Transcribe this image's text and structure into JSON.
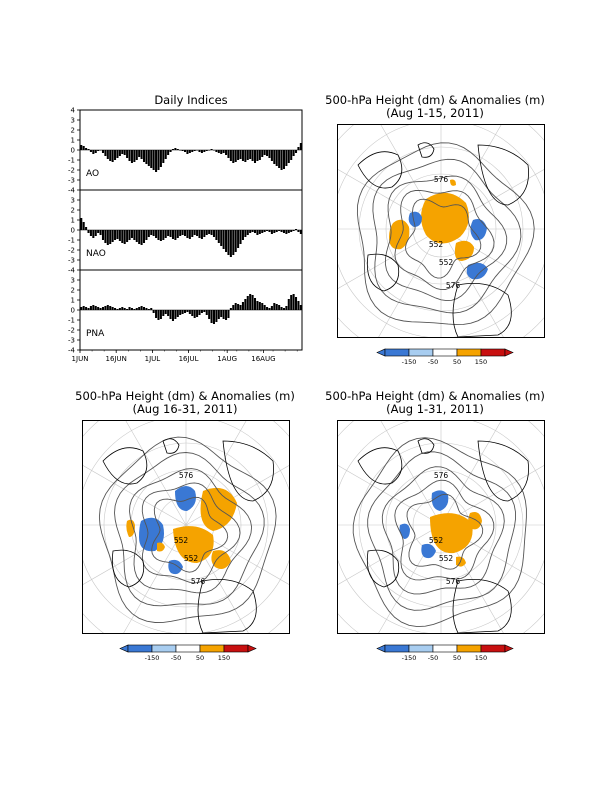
{
  "indices": {
    "title": "Daily Indices",
    "panels": [
      {
        "name": "AO",
        "ylim": [
          -4,
          4
        ],
        "ticks": [
          "4",
          "3",
          "2",
          "1",
          "0",
          "-1",
          "-2",
          "-3",
          "-4"
        ]
      },
      {
        "name": "NAO",
        "ylim": [
          -4,
          4
        ],
        "ticks": [
          "4",
          "3",
          "2",
          "1",
          "0",
          "-1",
          "-2",
          "-3",
          "-4"
        ]
      },
      {
        "name": "PNA",
        "ylim": [
          -4,
          4
        ],
        "ticks": [
          "4",
          "3",
          "2",
          "1",
          "0",
          "-1",
          "-2",
          "-3",
          "-4"
        ]
      }
    ],
    "xticks": [
      "1JUN",
      "16JUN",
      "1JUL",
      "16JUL",
      "1AUG",
      "16AUG"
    ]
  },
  "maps": [
    {
      "title_line1": "500-hPa Height (dm) & Anomalies (m)",
      "title_line2": "(Aug 1-15, 2011)",
      "contour_labels": [
        "576",
        "552",
        "552",
        "576"
      ]
    },
    {
      "title_line1": "500-hPa Height (dm) & Anomalies (m)",
      "title_line2": "(Aug 16-31, 2011)",
      "contour_labels": [
        "576",
        "552",
        "552",
        "576"
      ]
    },
    {
      "title_line1": "500-hPa Height (dm) & Anomalies (m)",
      "title_line2": "(Aug 1-31, 2011)",
      "contour_labels": [
        "576",
        "552",
        "552",
        "576"
      ]
    }
  ],
  "colorbar": {
    "labels": [
      "-150",
      "-50",
      "50",
      "150"
    ],
    "colors": [
      "#3a78d4",
      "#a8cdf0",
      "#ffffff",
      "#f5a300",
      "#c81010"
    ]
  },
  "chart_data": [
    {
      "type": "bar",
      "title": "Daily Indices",
      "x": "daily, 1 Jun - 31 Aug 2011",
      "xticks": [
        "1JUN",
        "16JUN",
        "1JUL",
        "16JUL",
        "1AUG",
        "16AUG"
      ],
      "ylim": [
        -4,
        4
      ],
      "series": [
        {
          "name": "AO",
          "values": [
            0.5,
            0.4,
            0.2,
            0.1,
            -0.2,
            -0.4,
            -0.3,
            -0.1,
            0,
            -0.3,
            -0.6,
            -0.9,
            -1.1,
            -1.2,
            -1.0,
            -0.8,
            -0.6,
            -0.4,
            -0.5,
            -0.8,
            -1.1,
            -1.3,
            -1.2,
            -1.0,
            -0.7,
            -0.9,
            -1.2,
            -1.4,
            -1.6,
            -1.8,
            -2.0,
            -2.2,
            -2.0,
            -1.7,
            -1.3,
            -0.9,
            -0.5,
            -0.2,
            0.1,
            0.2,
            0.1,
            0,
            -0.1,
            -0.2,
            -0.4,
            -0.3,
            -0.2,
            -0.1,
            0,
            -0.2,
            -0.3,
            -0.2,
            -0.1,
            0,
            0.1,
            0,
            -0.2,
            -0.3,
            -0.4,
            -0.3,
            -0.5,
            -0.8,
            -1.1,
            -1.3,
            -1.2,
            -1.0,
            -0.9,
            -1.1,
            -1.2,
            -1.0,
            -0.9,
            -1.1,
            -1.3,
            -1.1,
            -1.0,
            -0.7,
            -0.5,
            -0.6,
            -0.8,
            -1.1,
            -1.4,
            -1.6,
            -1.8,
            -2.0,
            -1.9,
            -1.6,
            -1.3,
            -1.0,
            -0.6,
            -0.3,
            0.3,
            0.7
          ]
        },
        {
          "name": "NAO",
          "values": [
            1.2,
            0.8,
            0.3,
            -0.3,
            -0.6,
            -0.8,
            -0.6,
            -0.3,
            -0.5,
            -1.0,
            -1.3,
            -1.5,
            -1.4,
            -1.2,
            -1.0,
            -0.9,
            -1.1,
            -1.3,
            -1.4,
            -1.2,
            -1.0,
            -0.8,
            -1.0,
            -1.2,
            -1.4,
            -1.5,
            -1.3,
            -1.0,
            -0.7,
            -0.5,
            -0.6,
            -0.8,
            -1.0,
            -1.1,
            -1.0,
            -0.8,
            -0.6,
            -0.7,
            -0.9,
            -1.0,
            -0.8,
            -0.6,
            -0.5,
            -0.6,
            -0.8,
            -0.9,
            -0.7,
            -0.5,
            -0.6,
            -0.8,
            -0.9,
            -0.7,
            -0.5,
            -0.4,
            -0.5,
            -0.7,
            -1.0,
            -1.3,
            -1.6,
            -1.9,
            -2.2,
            -2.5,
            -2.7,
            -2.5,
            -2.2,
            -1.8,
            -1.4,
            -1.0,
            -0.7,
            -0.5,
            -0.3,
            -0.2,
            -0.3,
            -0.5,
            -0.4,
            -0.3,
            -0.2,
            -0.1,
            -0.2,
            -0.4,
            -0.3,
            -0.2,
            -0.1,
            -0.2,
            -0.3,
            -0.4,
            -0.3,
            -0.2,
            -0.1,
            0.1,
            -0.2,
            -0.4
          ]
        },
        {
          "name": "PNA",
          "values": [
            0.3,
            0.4,
            0.3,
            0.2,
            0.4,
            0.5,
            0.4,
            0.3,
            0.2,
            0.3,
            0.4,
            0.5,
            0.4,
            0.3,
            0.2,
            0.1,
            0.2,
            0.3,
            0.2,
            0.1,
            0.3,
            0.2,
            0.1,
            0.2,
            0.3,
            0.4,
            0.3,
            0.2,
            0.1,
            0.2,
            -0.3,
            -0.8,
            -1.0,
            -0.9,
            -0.6,
            -0.4,
            -0.6,
            -0.9,
            -1.1,
            -0.9,
            -0.7,
            -0.5,
            -0.4,
            -0.3,
            -0.2,
            -0.4,
            -0.6,
            -0.8,
            -0.7,
            -0.5,
            -0.3,
            -0.2,
            -0.5,
            -0.9,
            -1.3,
            -1.4,
            -1.2,
            -0.9,
            -0.7,
            -0.9,
            -1.0,
            -0.8,
            0.2,
            0.5,
            0.7,
            0.6,
            0.5,
            0.8,
            1.1,
            1.4,
            1.6,
            1.5,
            1.2,
            0.9,
            0.8,
            0.7,
            0.5,
            0.3,
            0.2,
            0.4,
            0.7,
            0.6,
            0.5,
            0.3,
            0.2,
            0.4,
            1.1,
            1.5,
            1.6,
            1.3,
            0.9,
            0.5
          ]
        }
      ]
    }
  ]
}
